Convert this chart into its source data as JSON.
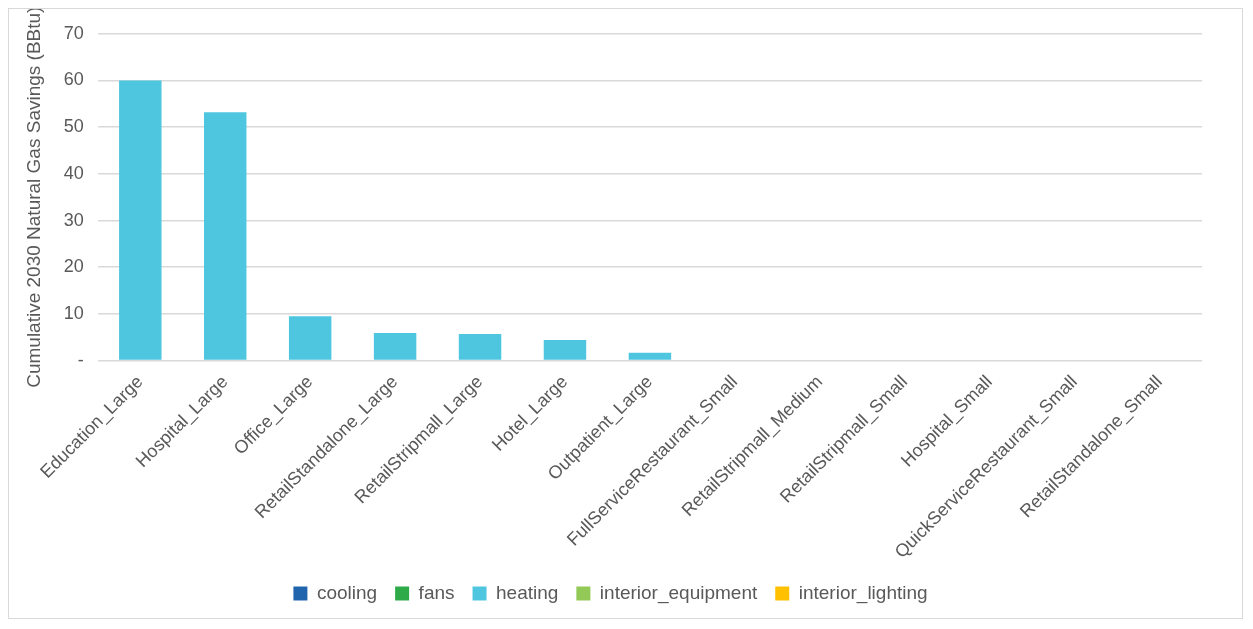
{
  "chart_data": {
    "type": "bar",
    "stacked": true,
    "ylabel": "Cumulative 2030 Natural Gas Savings (BBtu)",
    "categories": [
      "Education_Large",
      "Hospital_Large",
      "Office_Large",
      "RetailStandalone_Large",
      "RetailStripmall_Large",
      "Hotel_Large",
      "Outpatient_Large",
      "FullServiceRestaurant_Small",
      "RetailStripmall_Medium",
      "RetailStripmall_Small",
      "Hospital_Small",
      "QuickServiceRestaurant_Small",
      "RetailStandalone_Small"
    ],
    "series": [
      {
        "name": "cooling",
        "color": "#1f64ad",
        "values": [
          0,
          0,
          0,
          0,
          0,
          0,
          0,
          0,
          0,
          0,
          0,
          0,
          0
        ]
      },
      {
        "name": "fans",
        "color": "#2eab48",
        "values": [
          0,
          0,
          0,
          0,
          0,
          0,
          0,
          0,
          0,
          0,
          0,
          0,
          0
        ]
      },
      {
        "name": "heating",
        "color": "#4fc6e0",
        "values": [
          60,
          53.2,
          9.5,
          5.9,
          5.7,
          4.4,
          1.7,
          0,
          0,
          0,
          0,
          0,
          0
        ]
      },
      {
        "name": "interior_equipment",
        "color": "#92c957",
        "values": [
          0,
          0,
          0,
          0,
          0,
          0,
          0,
          0,
          0,
          0,
          0,
          0,
          0
        ]
      },
      {
        "name": "interior_lighting",
        "color": "#ffc000",
        "values": [
          0,
          0,
          0,
          0,
          0,
          0,
          0,
          0,
          0,
          0,
          0,
          0,
          0
        ]
      }
    ],
    "ylim": [
      0,
      70
    ],
    "yticks": [
      {
        "value": 0,
        "label": "-"
      },
      10,
      20,
      30,
      40,
      50,
      60,
      70
    ],
    "grid": "y",
    "legend": "bottom"
  }
}
